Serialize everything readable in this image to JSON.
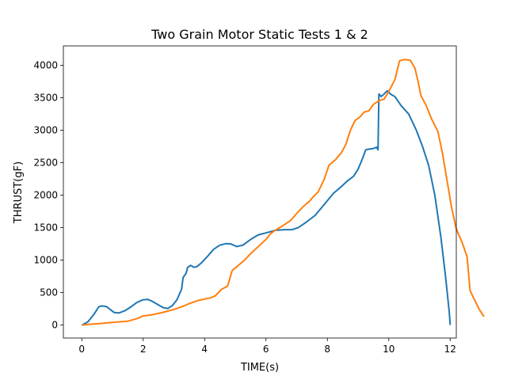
{
  "chart_data": {
    "type": "line",
    "title": "Two Grain Motor Static Tests 1 & 2",
    "xlabel": "TIME(s)",
    "ylabel": "THRUST(gF)",
    "xlim": [
      -0.6,
      12.2
    ],
    "ylim": [
      -200,
      4300
    ],
    "xticks": [
      0,
      2,
      4,
      6,
      8,
      10,
      12
    ],
    "yticks": [
      0,
      500,
      1000,
      1500,
      2000,
      2500,
      3000,
      3500,
      4000
    ],
    "grid": false,
    "legend": "none",
    "series": [
      {
        "color": "#1f77b4",
        "points": [
          [
            0,
            0
          ],
          [
            0.2,
            50
          ],
          [
            0.4,
            170
          ],
          [
            0.55,
            280
          ],
          [
            0.65,
            295
          ],
          [
            0.8,
            285
          ],
          [
            0.95,
            230
          ],
          [
            1.05,
            195
          ],
          [
            1.2,
            185
          ],
          [
            1.4,
            220
          ],
          [
            1.6,
            280
          ],
          [
            1.8,
            350
          ],
          [
            2.0,
            390
          ],
          [
            2.15,
            395
          ],
          [
            2.3,
            365
          ],
          [
            2.5,
            310
          ],
          [
            2.65,
            270
          ],
          [
            2.8,
            255
          ],
          [
            2.95,
            300
          ],
          [
            3.1,
            390
          ],
          [
            3.2,
            500
          ],
          [
            3.25,
            550
          ],
          [
            3.3,
            730
          ],
          [
            3.4,
            800
          ],
          [
            3.45,
            890
          ],
          [
            3.55,
            920
          ],
          [
            3.65,
            890
          ],
          [
            3.75,
            900
          ],
          [
            3.9,
            960
          ],
          [
            4.1,
            1060
          ],
          [
            4.3,
            1170
          ],
          [
            4.5,
            1230
          ],
          [
            4.7,
            1255
          ],
          [
            4.85,
            1250
          ],
          [
            5.05,
            1210
          ],
          [
            5.25,
            1230
          ],
          [
            5.5,
            1320
          ],
          [
            5.75,
            1390
          ],
          [
            6.0,
            1420
          ],
          [
            6.3,
            1460
          ],
          [
            6.6,
            1470
          ],
          [
            6.85,
            1470
          ],
          [
            7.05,
            1500
          ],
          [
            7.3,
            1580
          ],
          [
            7.6,
            1690
          ],
          [
            7.9,
            1860
          ],
          [
            8.2,
            2030
          ],
          [
            8.45,
            2130
          ],
          [
            8.65,
            2220
          ],
          [
            8.85,
            2290
          ],
          [
            9.0,
            2400
          ],
          [
            9.15,
            2570
          ],
          [
            9.25,
            2700
          ],
          [
            9.35,
            2710
          ],
          [
            9.5,
            2720
          ],
          [
            9.6,
            2740
          ],
          [
            9.65,
            2700
          ],
          [
            9.68,
            3560
          ],
          [
            9.75,
            3520
          ],
          [
            9.85,
            3560
          ],
          [
            9.95,
            3610
          ],
          [
            10.05,
            3560
          ],
          [
            10.2,
            3520
          ],
          [
            10.4,
            3380
          ],
          [
            10.65,
            3250
          ],
          [
            10.9,
            3000
          ],
          [
            11.1,
            2750
          ],
          [
            11.3,
            2460
          ],
          [
            11.5,
            2000
          ],
          [
            11.7,
            1350
          ],
          [
            11.85,
            750
          ],
          [
            11.97,
            200
          ],
          [
            12.0,
            0
          ]
        ]
      },
      {
        "color": "#ff7f0e",
        "points": [
          [
            0,
            0
          ],
          [
            0.2,
            10
          ],
          [
            0.5,
            20
          ],
          [
            1.0,
            40
          ],
          [
            1.5,
            60
          ],
          [
            1.8,
            100
          ],
          [
            2.0,
            140
          ],
          [
            2.3,
            160
          ],
          [
            2.6,
            190
          ],
          [
            3.0,
            240
          ],
          [
            3.3,
            290
          ],
          [
            3.5,
            330
          ],
          [
            3.8,
            380
          ],
          [
            4.0,
            400
          ],
          [
            4.2,
            420
          ],
          [
            4.35,
            450
          ],
          [
            4.55,
            550
          ],
          [
            4.75,
            600
          ],
          [
            4.9,
            840
          ],
          [
            5.1,
            920
          ],
          [
            5.3,
            1000
          ],
          [
            5.5,
            1100
          ],
          [
            5.8,
            1230
          ],
          [
            6.0,
            1320
          ],
          [
            6.15,
            1410
          ],
          [
            6.3,
            1460
          ],
          [
            6.55,
            1530
          ],
          [
            6.8,
            1610
          ],
          [
            7.0,
            1720
          ],
          [
            7.2,
            1820
          ],
          [
            7.4,
            1900
          ],
          [
            7.55,
            1980
          ],
          [
            7.7,
            2050
          ],
          [
            7.9,
            2250
          ],
          [
            8.05,
            2460
          ],
          [
            8.25,
            2540
          ],
          [
            8.45,
            2650
          ],
          [
            8.6,
            2780
          ],
          [
            8.75,
            3000
          ],
          [
            8.9,
            3150
          ],
          [
            9.05,
            3200
          ],
          [
            9.2,
            3280
          ],
          [
            9.35,
            3300
          ],
          [
            9.5,
            3400
          ],
          [
            9.7,
            3460
          ],
          [
            9.85,
            3480
          ],
          [
            10.0,
            3600
          ],
          [
            10.2,
            3780
          ],
          [
            10.35,
            4070
          ],
          [
            10.5,
            4090
          ],
          [
            10.7,
            4080
          ],
          [
            10.85,
            3960
          ],
          [
            10.95,
            3760
          ],
          [
            11.05,
            3530
          ],
          [
            11.2,
            3400
          ],
          [
            11.4,
            3170
          ],
          [
            11.6,
            2980
          ],
          [
            11.75,
            2640
          ],
          [
            11.9,
            2220
          ],
          [
            12.05,
            1800
          ],
          [
            12.2,
            1480
          ],
          [
            12.4,
            1260
          ],
          [
            12.55,
            1050
          ],
          [
            12.65,
            530
          ],
          [
            12.8,
            380
          ],
          [
            12.95,
            240
          ],
          [
            13.1,
            130
          ]
        ]
      }
    ]
  }
}
